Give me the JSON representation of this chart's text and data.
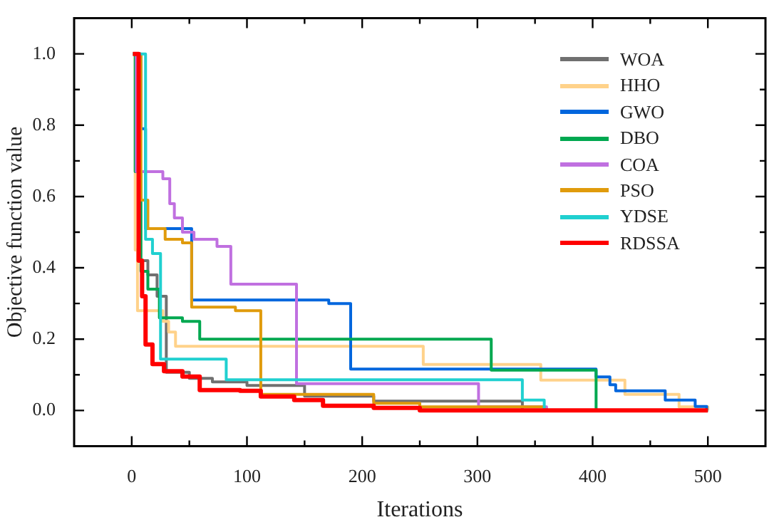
{
  "chart_data": {
    "type": "step",
    "xlabel": "Iterations",
    "ylabel": "Objective function value",
    "xlim": [
      -50,
      550
    ],
    "ylim": [
      -0.1,
      1.1
    ],
    "xticks": [
      0,
      {
        "value": 50,
        "label": null
      },
      100,
      {
        "value": 150,
        "label": null
      },
      200,
      {
        "value": 250,
        "label": null
      },
      300,
      {
        "value": 350,
        "label": null
      },
      400,
      {
        "value": 450,
        "label": null
      },
      500
    ],
    "yticks": [
      {
        "value": 0,
        "label": "0.0"
      },
      {
        "value": 0.1,
        "label": null
      },
      {
        "value": 0.2,
        "label": "0.2"
      },
      {
        "value": 0.3,
        "label": null
      },
      {
        "value": 0.4,
        "label": "0.4"
      },
      {
        "value": 0.5,
        "label": null
      },
      {
        "value": 0.6,
        "label": "0.6"
      },
      {
        "value": 0.7,
        "label": null
      },
      {
        "value": 0.8,
        "label": "0.8"
      },
      {
        "value": 0.9,
        "label": null
      },
      {
        "value": 1.0,
        "label": "1.0"
      }
    ],
    "grid": false,
    "legend": "top right",
    "marker": "none",
    "line_style": "solid",
    "series": [
      {
        "name": "WOA",
        "color": "#707070",
        "x": [
          1,
          7,
          14,
          22,
          30,
          50,
          70,
          100,
          150,
          210,
          339,
          500
        ],
        "values": [
          1,
          0.42,
          0.38,
          0.32,
          0.107,
          0.09,
          0.08,
          0.07,
          0.04,
          0.026,
          0,
          0
        ]
      },
      {
        "name": "HHO",
        "color": "#ffd28a",
        "x": [
          1,
          3,
          5,
          27,
          32,
          38,
          253,
          355,
          428,
          475,
          500
        ],
        "values": [
          1,
          0.45,
          0.28,
          0.25,
          0.22,
          0.18,
          0.129,
          0.085,
          0.045,
          0.01,
          0
        ]
      },
      {
        "name": "GWO",
        "color": "#0066dd",
        "x": [
          1,
          8,
          12,
          52,
          171,
          190,
          403,
          415,
          420,
          463,
          489,
          499,
          500
        ],
        "values": [
          1,
          0.79,
          0.51,
          0.31,
          0.3,
          0.116,
          0.094,
          0.072,
          0.055,
          0.029,
          0.011,
          0,
          0
        ]
      },
      {
        "name": "DBO",
        "color": "#00a850",
        "x": [
          1,
          3,
          8,
          14,
          24,
          44,
          59,
          312,
          403,
          500
        ],
        "values": [
          1,
          0.67,
          0.39,
          0.34,
          0.26,
          0.25,
          0.2,
          0.113,
          0,
          0
        ]
      },
      {
        "name": "COA",
        "color": "#c070e0",
        "x": [
          1,
          4,
          27,
          33,
          37,
          44,
          54,
          74,
          86,
          143,
          301,
          360,
          500
        ],
        "values": [
          1,
          0.67,
          0.65,
          0.58,
          0.54,
          0.5,
          0.48,
          0.46,
          0.354,
          0.075,
          0.01,
          0,
          0
        ]
      },
      {
        "name": "PSO",
        "color": "#e09b0c",
        "x": [
          1,
          8,
          14,
          29,
          44,
          52,
          90,
          112,
          210,
          250,
          358,
          500
        ],
        "values": [
          1,
          0.59,
          0.51,
          0.48,
          0.47,
          0.29,
          0.28,
          0.045,
          0.02,
          0.01,
          0,
          0
        ]
      },
      {
        "name": "YDSE",
        "color": "#20d0d0",
        "x": [
          1,
          12,
          18,
          25,
          82,
          339,
          358,
          500
        ],
        "values": [
          1,
          0.48,
          0.44,
          0.144,
          0.086,
          0.029,
          0,
          0
        ]
      },
      {
        "name": "RDSSA",
        "color": "#ff0000",
        "x": [
          1,
          6,
          9,
          12,
          18,
          28,
          44,
          59,
          94,
          112,
          141,
          166,
          210,
          250,
          500
        ],
        "values": [
          1,
          0.42,
          0.32,
          0.185,
          0.13,
          0.11,
          0.095,
          0.057,
          0.055,
          0.039,
          0.029,
          0.013,
          0.007,
          0,
          0
        ]
      }
    ]
  }
}
